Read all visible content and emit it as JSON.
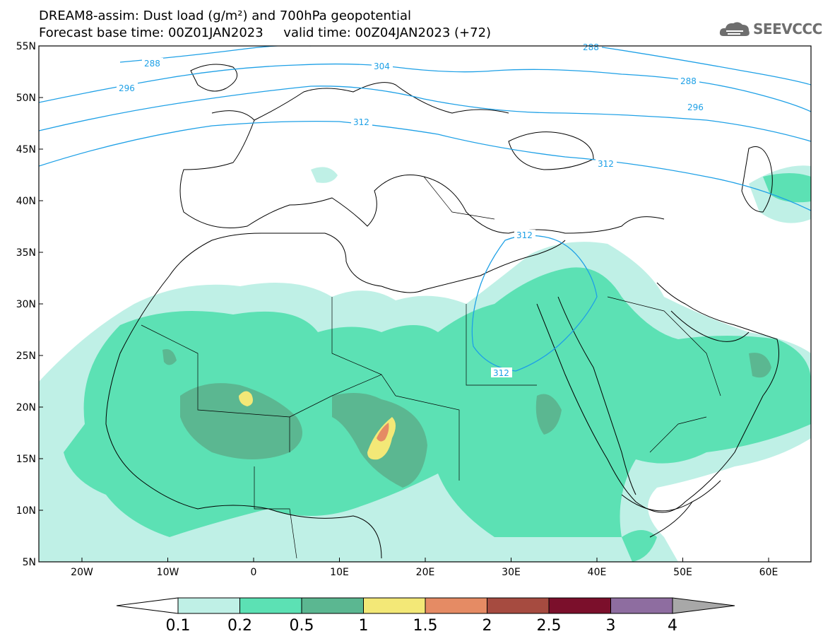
{
  "header": {
    "line1": "DREAM8-assim: Dust load (g/m²) and 700hPa geopotential",
    "line2": "Forecast base time: 00Z01JAN2023     valid time: 00Z04JAN2023 (+72)"
  },
  "logo": {
    "text": "SEEVCCC",
    "icon": "cloud-icon"
  },
  "map": {
    "lat_labels": [
      "55N",
      "50N",
      "45N",
      "40N",
      "35N",
      "30N",
      "25N",
      "20N",
      "15N",
      "10N",
      "5N"
    ],
    "lon_labels": [
      "20W",
      "10W",
      "0",
      "10E",
      "20E",
      "30E",
      "40E",
      "50E",
      "60E"
    ],
    "contour_labels": [
      "288",
      "296",
      "304",
      "312",
      "288",
      "296",
      "312",
      "312",
      "312",
      "288"
    ]
  },
  "colorbar": {
    "labels": [
      "0.1",
      "0.2",
      "0.5",
      "1",
      "1.5",
      "2",
      "2.5",
      "3",
      "4"
    ],
    "colors": [
      "#ffffff",
      "#bff0e6",
      "#5ce1b4",
      "#5bb791",
      "#f3e877",
      "#e58b64",
      "#a64b40",
      "#7b0f2b",
      "#8e6da0",
      "#a8a8a8"
    ]
  }
}
